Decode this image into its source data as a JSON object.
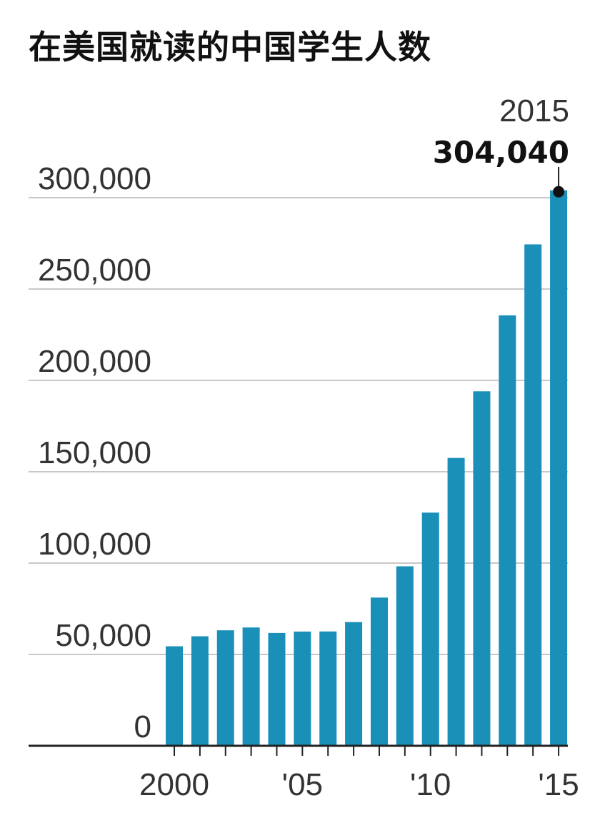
{
  "chart_data": {
    "type": "bar",
    "title": "在美国就读的中国学生人数",
    "xlabel": "",
    "ylabel": "",
    "categories": [
      2000,
      2001,
      2002,
      2003,
      2004,
      2005,
      2006,
      2007,
      2008,
      2009,
      2010,
      2011,
      2012,
      2013,
      2014,
      2015
    ],
    "values": [
      54466,
      59939,
      63211,
      64757,
      61765,
      62523,
      62582,
      67723,
      81127,
      98235,
      127628,
      157558,
      194029,
      235597,
      274439,
      304040
    ],
    "ylim": [
      0,
      300000
    ],
    "yticks": [
      0,
      50000,
      100000,
      150000,
      200000,
      250000,
      300000
    ],
    "ytick_labels": [
      "0",
      "50,000",
      "100,000",
      "150,000",
      "200,000",
      "250,000",
      "300,000"
    ],
    "xtick_labels": [
      {
        "year": 2000,
        "label": "2000"
      },
      {
        "year": 2005,
        "label": "'05"
      },
      {
        "year": 2010,
        "label": "'10"
      },
      {
        "year": 2015,
        "label": "'15"
      }
    ],
    "grid": true,
    "bar_color": "#1a8fb8",
    "annotation": {
      "year_label": "2015",
      "value_label": "304,040",
      "year": 2015,
      "value": 304040
    }
  }
}
